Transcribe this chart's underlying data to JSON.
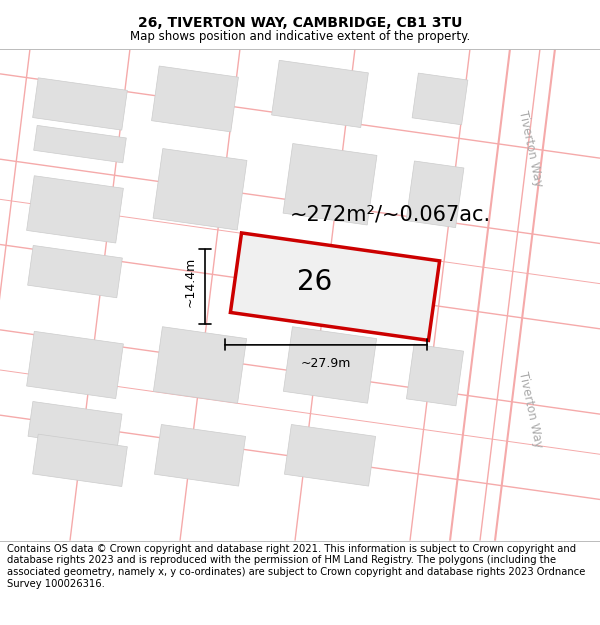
{
  "title": "26, TIVERTON WAY, CAMBRIDGE, CB1 3TU",
  "subtitle": "Map shows position and indicative extent of the property.",
  "footer": "Contains OS data © Crown copyright and database right 2021. This information is subject to Crown copyright and database rights 2023 and is reproduced with the permission of HM Land Registry. The polygons (including the associated geometry, namely x, y co-ordinates) are subject to Crown copyright and database rights 2023 Ordnance Survey 100026316.",
  "area_label": "~272m²/~0.067ac.",
  "number_label": "26",
  "width_label": "~27.9m",
  "height_label": "~14.4m",
  "road_label_top": "Tiverton Way",
  "road_label_bottom": "Tiverton Way",
  "bg_color": "#ffffff",
  "map_bg": "#ffffff",
  "building_fill": "#e0e0e0",
  "building_edge": "#cccccc",
  "plot_stroke": "#cc0000",
  "road_line_color": "#f5aaaa",
  "title_fontsize": 10,
  "subtitle_fontsize": 8.5,
  "footer_fontsize": 7.2,
  "area_label_fontsize": 15,
  "number_label_fontsize": 20,
  "road_label_fontsize": 8.5
}
